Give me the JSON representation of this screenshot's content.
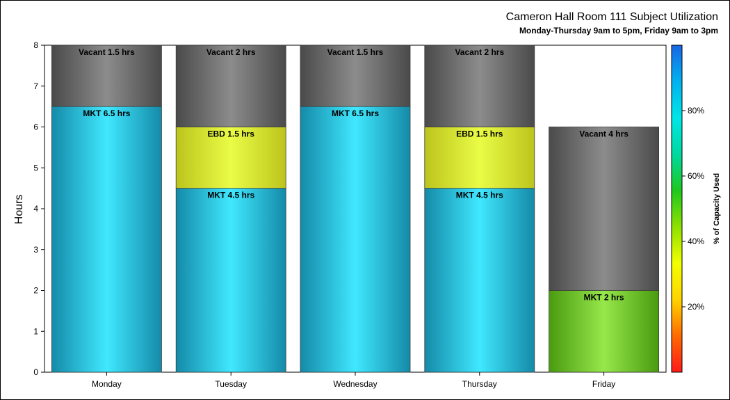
{
  "chart_data": {
    "type": "bar",
    "stacked": true,
    "title": "Cameron Hall Room 111 Subject Utilization",
    "subtitle": "Monday-Thursday 9am to 5pm, Friday 9am to 3pm",
    "ylabel": "Hours",
    "xlabel": "",
    "ylim": [
      0,
      8
    ],
    "yticks": [
      0,
      1,
      2,
      3,
      4,
      5,
      6,
      7,
      8
    ],
    "categories": [
      "Monday",
      "Tuesday",
      "Wednesday",
      "Thursday",
      "Friday"
    ],
    "bars": [
      {
        "category": "Monday",
        "segments": [
          {
            "name": "MKT",
            "value": 6.5,
            "label": "MKT 6.5 hrs",
            "color": "cyan"
          },
          {
            "name": "Vacant",
            "value": 1.5,
            "label": "Vacant 1.5 hrs",
            "color": "gray"
          }
        ]
      },
      {
        "category": "Tuesday",
        "segments": [
          {
            "name": "MKT",
            "value": 4.5,
            "label": "MKT 4.5 hrs",
            "color": "cyan"
          },
          {
            "name": "EBD",
            "value": 1.5,
            "label": "EBD 1.5 hrs",
            "color": "yellow"
          },
          {
            "name": "Vacant",
            "value": 2,
            "label": "Vacant 2 hrs",
            "color": "gray"
          }
        ]
      },
      {
        "category": "Wednesday",
        "segments": [
          {
            "name": "MKT",
            "value": 6.5,
            "label": "MKT 6.5 hrs",
            "color": "cyan"
          },
          {
            "name": "Vacant",
            "value": 1.5,
            "label": "Vacant 1.5 hrs",
            "color": "gray"
          }
        ]
      },
      {
        "category": "Thursday",
        "segments": [
          {
            "name": "MKT",
            "value": 4.5,
            "label": "MKT 4.5 hrs",
            "color": "cyan"
          },
          {
            "name": "EBD",
            "value": 1.5,
            "label": "EBD 1.5 hrs",
            "color": "yellow"
          },
          {
            "name": "Vacant",
            "value": 2,
            "label": "Vacant 2 hrs",
            "color": "gray"
          }
        ]
      },
      {
        "category": "Friday",
        "segments": [
          {
            "name": "MKT",
            "value": 2,
            "label": "MKT 2 hrs",
            "color": "green"
          },
          {
            "name": "Vacant",
            "value": 4,
            "label": "Vacant 4 hrs",
            "color": "gray"
          }
        ]
      }
    ],
    "colors": {
      "cyan": {
        "edge": "#148aa8",
        "mid": "#40e8ff"
      },
      "yellow": {
        "edge": "#bcc41c",
        "mid": "#eafc46"
      },
      "gray": {
        "edge": "#4a4a4a",
        "mid": "#8c8c8c"
      },
      "green": {
        "edge": "#4a9a10",
        "mid": "#96e84a"
      }
    },
    "colorbar": {
      "title": "% of Capacity Used",
      "ticks": [
        {
          "value": 20,
          "label": "20%"
        },
        {
          "value": 40,
          "label": "40%"
        },
        {
          "value": 60,
          "label": "60%"
        },
        {
          "value": 80,
          "label": "80%"
        }
      ],
      "range": [
        0,
        100
      ],
      "stops": [
        "#ff1a1a",
        "#ff6a00",
        "#ffd400",
        "#f2ff00",
        "#8ee000",
        "#1ec81e",
        "#00d9a0",
        "#00e6e6",
        "#00b2f0",
        "#1a66e6"
      ]
    },
    "legend_placement": "right",
    "grid": false
  }
}
